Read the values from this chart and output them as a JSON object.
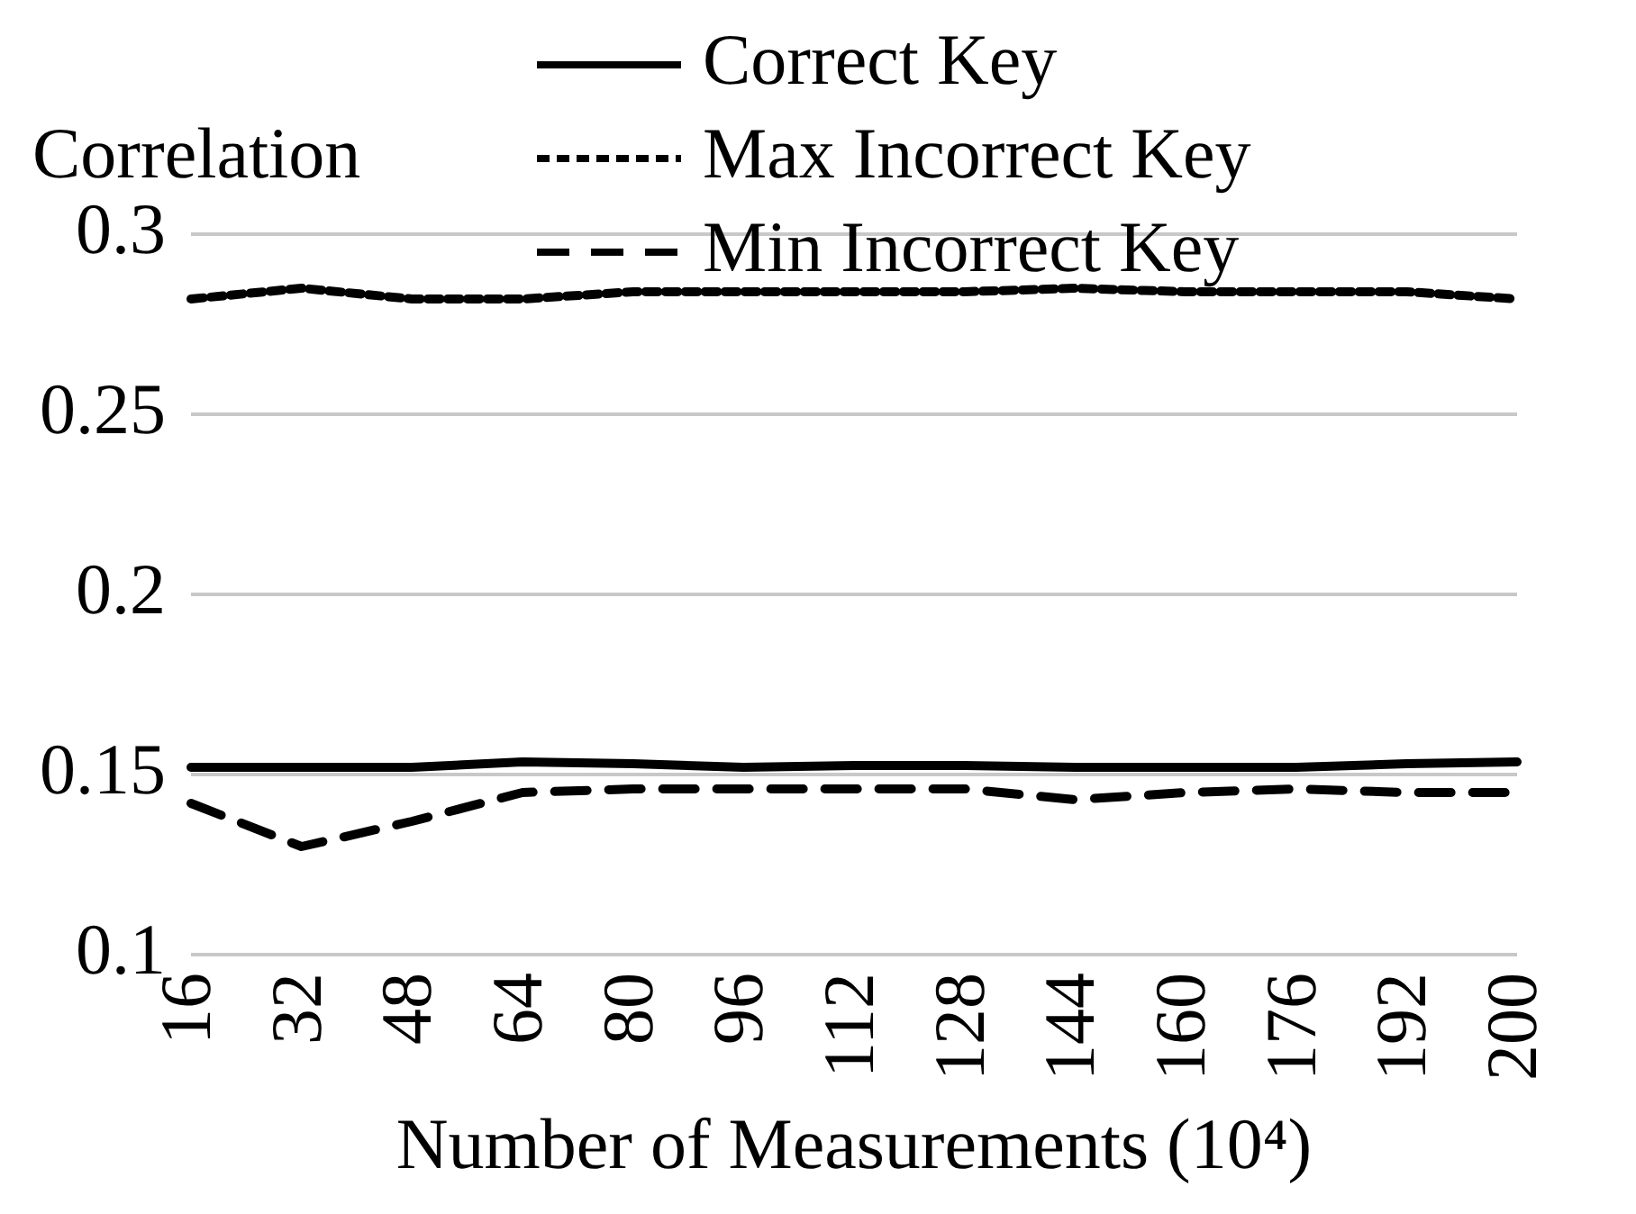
{
  "chart_data": {
    "type": "line",
    "ylabel": "Correlation",
    "xlabel": "Number of Measurements (10⁴)",
    "categories": [
      "16",
      "32",
      "48",
      "64",
      "80",
      "96",
      "112",
      "128",
      "144",
      "160",
      "176",
      "192",
      "200"
    ],
    "ylim": [
      0.1,
      0.3
    ],
    "yticks": [
      0.1,
      0.15,
      0.2,
      0.25,
      0.3
    ],
    "grid": "y",
    "legend": "top",
    "marker": "none",
    "series": [
      {
        "name": "Correct Key",
        "color": "#000000",
        "line_style": "solid",
        "values": [
          0.152,
          0.152,
          0.152,
          0.1535,
          0.153,
          0.152,
          0.1525,
          0.1525,
          0.152,
          0.152,
          0.152,
          0.153,
          0.1535
        ]
      },
      {
        "name": "Max Incorrect Key",
        "color": "#000000",
        "line_style": "dotted",
        "values": [
          0.282,
          0.285,
          0.282,
          0.282,
          0.284,
          0.284,
          0.284,
          0.284,
          0.285,
          0.284,
          0.284,
          0.284,
          0.282
        ]
      },
      {
        "name": "Min Incorrect Key",
        "color": "#000000",
        "line_style": "dashed",
        "values": [
          0.142,
          0.13,
          0.137,
          0.145,
          0.146,
          0.146,
          0.146,
          0.146,
          0.143,
          0.145,
          0.146,
          0.145,
          0.145
        ]
      }
    ]
  }
}
